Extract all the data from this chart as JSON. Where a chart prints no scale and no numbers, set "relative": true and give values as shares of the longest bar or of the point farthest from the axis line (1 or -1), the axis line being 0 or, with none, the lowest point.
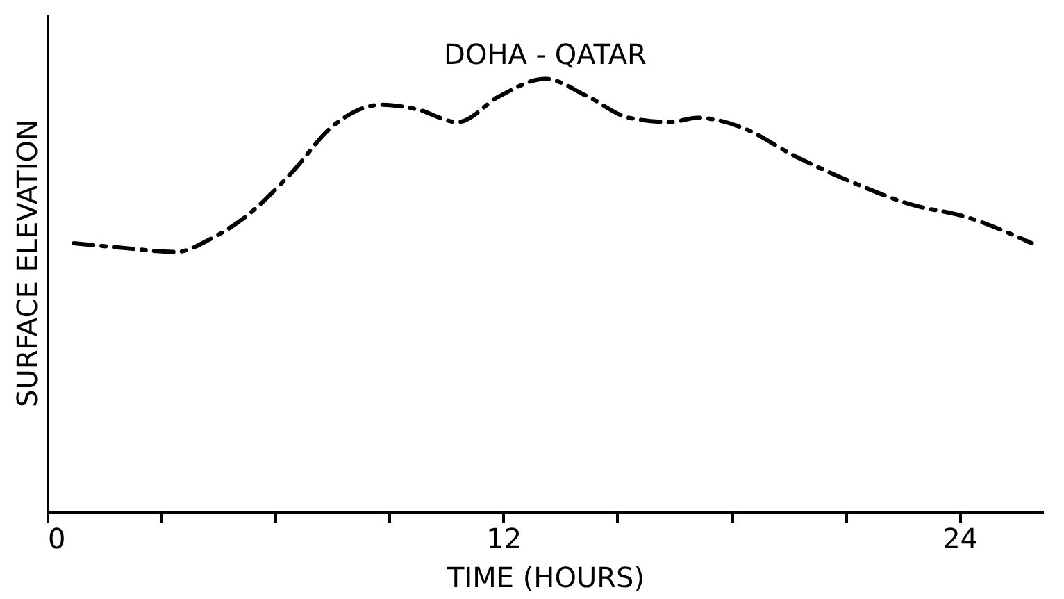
{
  "chart_data": {
    "type": "line",
    "title": "DOHA   -   QATAR",
    "xlabel": "TIME    (HOURS)",
    "ylabel": "SURFACE    ELEVATION",
    "relative": true,
    "x": [
      0.7,
      1.9,
      3.4,
      4.3,
      5.2,
      6.4,
      7.5,
      8.8,
      9.7,
      10.8,
      11.9,
      13.1,
      14.2,
      15.3,
      16.4,
      17.1,
      18.2,
      19.7,
      21.2,
      22.7,
      24.2,
      25.9
    ],
    "series": [
      {
        "color": "#000000",
        "values": [
          0.62,
          0.61,
          0.6,
          0.63,
          0.68,
          0.78,
          0.89,
          0.94,
          0.93,
          0.9,
          0.96,
          1.0,
          0.96,
          0.91,
          0.9,
          0.91,
          0.89,
          0.82,
          0.76,
          0.71,
          0.68,
          0.62
        ]
      }
    ],
    "xlim": [
      0,
      26.2
    ],
    "xticks": [
      0,
      {
        "value": 3,
        "label": null
      },
      {
        "value": 6,
        "label": null
      },
      {
        "value": 9,
        "label": null
      },
      12,
      {
        "value": 15,
        "label": null
      },
      {
        "value": 18,
        "label": null
      },
      {
        "value": 21,
        "label": null
      },
      24
    ],
    "grid": false,
    "marker": "none",
    "line_style": "dashed"
  }
}
